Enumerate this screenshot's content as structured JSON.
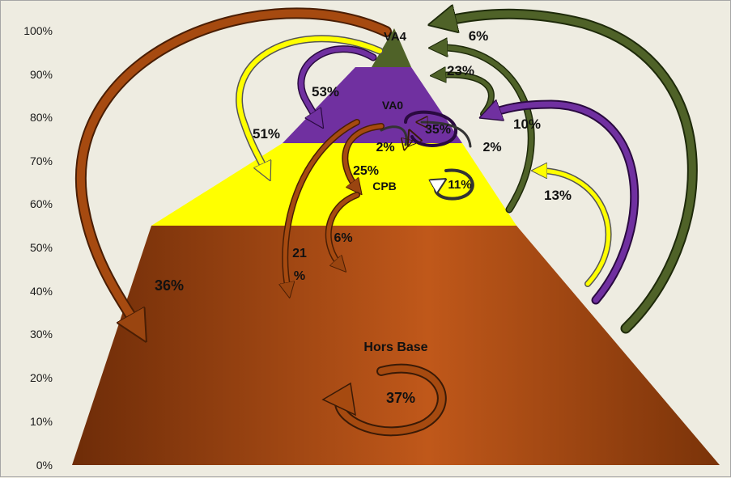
{
  "y_axis": {
    "ticks": [
      "0%",
      "10%",
      "20%",
      "30%",
      "40%",
      "50%",
      "60%",
      "70%",
      "80%",
      "90%",
      "100%"
    ]
  },
  "levels": {
    "hors_base": {
      "name": "Hors Base",
      "color": "#a64a10"
    },
    "cpb": {
      "name": "CPB",
      "color": "#ffff00"
    },
    "va0": {
      "name": "VA0",
      "color": "#7030a0"
    },
    "va4": {
      "name": "VA4",
      "color": "#4f6228"
    }
  },
  "flows": {
    "va4_to_hors_base": "36%",
    "va4_to_cpb": "51%",
    "va4_to_va0": "53%",
    "hors_base_to_va4": "6%",
    "cpb_to_va4": "23%",
    "hors_base_to_va0": "10%",
    "va0_self": "35%",
    "va0_to_cpb": "2%",
    "cpb_to_va0": "2%",
    "va0_to_cpb_25": "25%",
    "cpb_self": "11%",
    "hors_base_to_cpb": "13%",
    "va0_to_hors_base_line1": "21",
    "va0_to_hors_base_line2": "%",
    "cpb_to_hors_base": "6%",
    "hors_base_self": "37%"
  }
}
